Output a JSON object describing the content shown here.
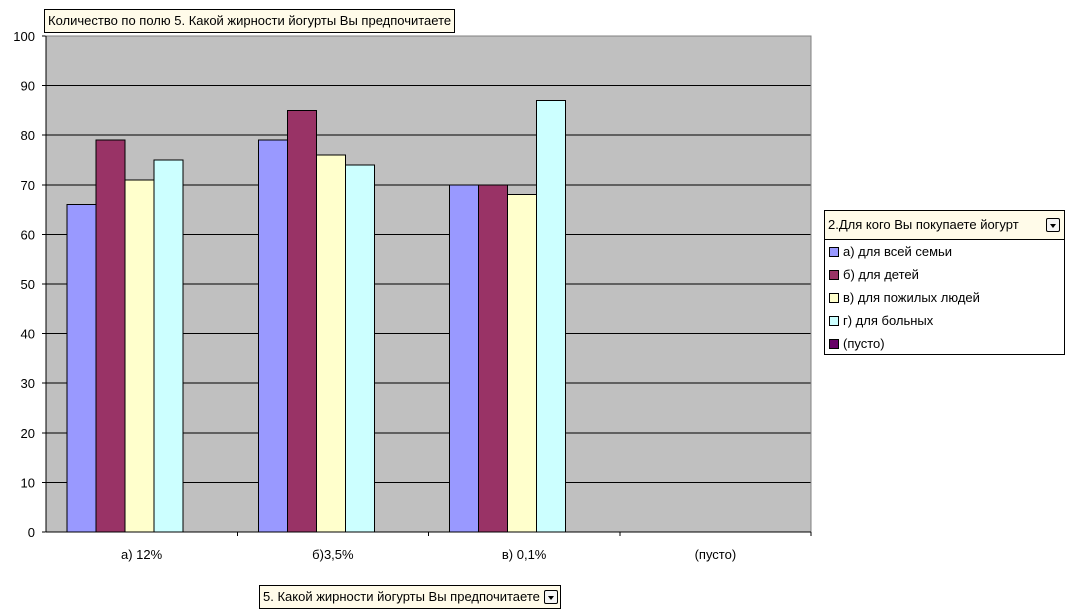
{
  "chart_data": {
    "type": "bar",
    "title": "",
    "xlabel": "",
    "ylabel": "",
    "ylim": [
      0,
      100
    ],
    "yticks": [
      "0",
      "10",
      "20",
      "30",
      "40",
      "50",
      "60",
      "70",
      "80",
      "90",
      "100"
    ],
    "grid": true,
    "legend_placement": "right",
    "categories": [
      "а) 12%",
      "б)3,5%",
      "в) 0,1%",
      "(пусто)"
    ],
    "series": [
      {
        "name": "а) для всей семьи",
        "color": "#9999ff",
        "values": [
          66,
          79,
          70,
          null
        ]
      },
      {
        "name": "б) для детей",
        "color": "#993366",
        "values": [
          79,
          85,
          70,
          null
        ]
      },
      {
        "name": "в) для пожилых людей",
        "color": "#ffffcc",
        "values": [
          71,
          76,
          68,
          null
        ]
      },
      {
        "name": "г) для больных",
        "color": "#ccffff",
        "values": [
          75,
          74,
          87,
          null
        ]
      },
      {
        "name": "(пусто)",
        "color": "#660066",
        "values": [
          null,
          null,
          null,
          null
        ]
      }
    ],
    "plot_background": "#c0c0c0"
  },
  "pivot": {
    "data_field_label": "Количество по полю 5. Какой жирности йогурты Вы предпочитаете",
    "category_field_label": "5. Какой жирности йогурты Вы предпочитаете",
    "series_field_label": "2.Для кого Вы покупаете йогурт"
  }
}
